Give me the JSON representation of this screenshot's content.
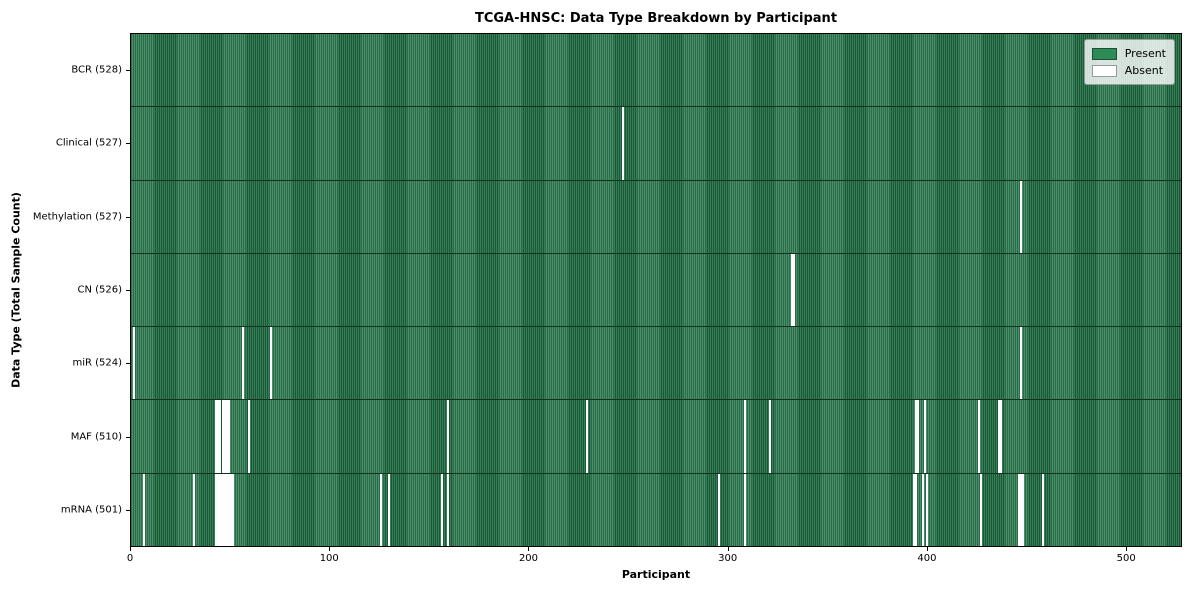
{
  "title": "TCGA-HNSC: Data Type Breakdown by Participant",
  "x_axis_label": "Participant",
  "y_axis_label": "Data Type (Total Sample Count)",
  "legend_items": [
    {
      "label": "Present",
      "color": "#2e8b57",
      "edge": "#1c4f33"
    },
    {
      "label": "Absent",
      "color": "#ffffff",
      "edge": "#9a9a9a"
    }
  ],
  "colors": {
    "present": "#2e8b57",
    "present_stripe_dark": "#1f5e3b",
    "present_stripe_light": "#378a5e",
    "absent": "#ffffff"
  },
  "chart_data": {
    "type": "heatmap",
    "title": "TCGA-HNSC: Data Type Breakdown by Participant",
    "xlabel": "Participant",
    "ylabel": "Data Type (Total Sample Count)",
    "legend": [
      "Present",
      "Absent"
    ],
    "legend_position": "upper right",
    "n_participants": 528,
    "x_range": [
      0,
      528
    ],
    "x_ticks": [
      0,
      100,
      200,
      300,
      400,
      500
    ],
    "rows": [
      {
        "label": "BCR (528)",
        "data_type": "BCR",
        "present_count": 528,
        "absent_participants": []
      },
      {
        "label": "Clinical (527)",
        "data_type": "Clinical",
        "present_count": 527,
        "absent_participants": [
          247
        ]
      },
      {
        "label": "Methylation (527)",
        "data_type": "Methylation",
        "present_count": 527,
        "absent_participants": [
          447
        ]
      },
      {
        "label": "CN (526)",
        "data_type": "CN",
        "present_count": 526,
        "absent_participants": [
          332,
          333
        ]
      },
      {
        "label": "miR (524)",
        "data_type": "miR",
        "present_count": 524,
        "absent_participants": [
          1,
          56,
          70,
          447
        ]
      },
      {
        "label": "MAF (510)",
        "data_type": "MAF",
        "present_count": 510,
        "absent_participants": [
          42,
          43,
          44,
          46,
          47,
          48,
          49,
          59,
          159,
          229,
          308,
          321,
          394,
          395,
          399,
          426,
          436,
          437
        ]
      },
      {
        "label": "mRNA (501)",
        "data_type": "mRNA",
        "present_count": 501,
        "absent_participants": [
          6,
          31,
          42,
          43,
          44,
          45,
          46,
          47,
          48,
          49,
          50,
          51,
          125,
          129,
          156,
          159,
          295,
          308,
          393,
          394,
          398,
          400,
          427,
          446,
          447,
          448,
          458
        ]
      }
    ]
  }
}
